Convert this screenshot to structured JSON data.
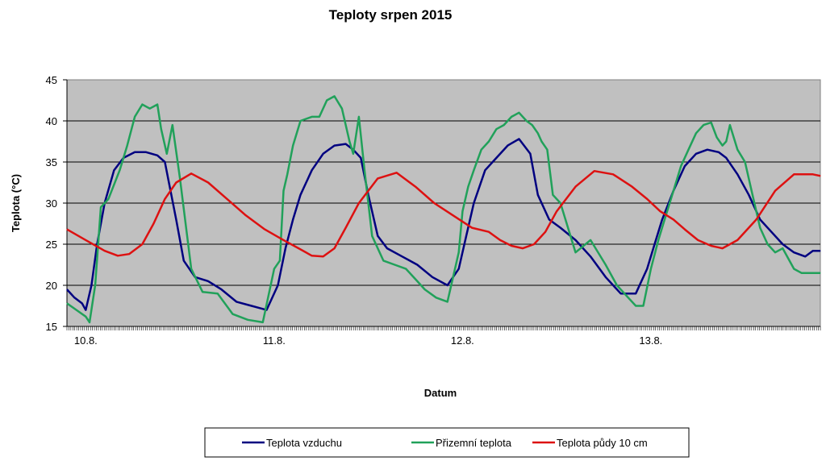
{
  "chart_data": {
    "type": "line",
    "title": "Teploty srpen 2015",
    "xlabel": "Datum",
    "ylabel": "Teplota  (°C)",
    "ylim": [
      15,
      45
    ],
    "yticks": [
      15,
      20,
      25,
      30,
      35,
      40,
      45
    ],
    "xlim": [
      0,
      4
    ],
    "x_tick_labels": [
      "10.8.",
      "11.8.",
      "12.8.",
      "13.8."
    ],
    "x_tick_positions": [
      0.1,
      1.1,
      2.1,
      3.1
    ],
    "grid": true,
    "legend_position": "bottom",
    "plot_background": "#c0c0c0",
    "series": [
      {
        "name": "Teplota vzduchu",
        "color": "#000080",
        "x": [
          0,
          0.04,
          0.08,
          0.1,
          0.13,
          0.16,
          0.2,
          0.25,
          0.3,
          0.36,
          0.42,
          0.48,
          0.52,
          0.58,
          0.62,
          0.68,
          0.75,
          0.82,
          0.9,
          0.98,
          1.06,
          1.12,
          1.16,
          1.2,
          1.24,
          1.3,
          1.36,
          1.42,
          1.48,
          1.52,
          1.56,
          1.6,
          1.65,
          1.7,
          1.78,
          1.86,
          1.94,
          2.02,
          2.08,
          2.12,
          2.16,
          2.22,
          2.28,
          2.34,
          2.4,
          2.46,
          2.5,
          2.56,
          2.62,
          2.7,
          2.78,
          2.86,
          2.94,
          3.02,
          3.08,
          3.12,
          3.16,
          3.22,
          3.28,
          3.34,
          3.4,
          3.46,
          3.5,
          3.56,
          3.62,
          3.68,
          3.74,
          3.8,
          3.86,
          3.92,
          3.96,
          4.0
        ],
        "y": [
          19.5,
          18.5,
          17.8,
          17,
          20,
          25,
          30,
          34,
          35.5,
          36.2,
          36.2,
          35.8,
          35,
          28,
          23,
          21,
          20.5,
          19.5,
          18,
          17.5,
          17,
          20,
          24.5,
          28,
          31,
          34,
          36,
          37,
          37.2,
          36.5,
          35.5,
          31,
          26,
          24.5,
          23.5,
          22.5,
          21,
          20,
          22,
          26,
          30,
          34,
          35.5,
          37,
          37.8,
          36,
          31,
          28,
          27,
          25.5,
          23.5,
          21,
          19,
          19,
          22,
          25,
          28,
          31.5,
          34.5,
          36,
          36.5,
          36.2,
          35.5,
          33.5,
          31,
          28,
          26.5,
          25,
          24,
          23.5,
          24.2,
          24.2
        ]
      },
      {
        "name": "Přizemní teplota",
        "color": "#21a15a",
        "x": [
          0,
          0.05,
          0.1,
          0.12,
          0.15,
          0.18,
          0.22,
          0.28,
          0.32,
          0.36,
          0.4,
          0.44,
          0.48,
          0.5,
          0.53,
          0.56,
          0.6,
          0.66,
          0.72,
          0.8,
          0.88,
          0.96,
          1.04,
          1.1,
          1.13,
          1.15,
          1.17,
          1.2,
          1.24,
          1.3,
          1.34,
          1.38,
          1.42,
          1.46,
          1.5,
          1.52,
          1.55,
          1.58,
          1.62,
          1.68,
          1.74,
          1.8,
          1.86,
          1.9,
          1.96,
          2.02,
          2.08,
          2.1,
          2.13,
          2.16,
          2.2,
          2.24,
          2.28,
          2.32,
          2.36,
          2.4,
          2.44,
          2.47,
          2.5,
          2.52,
          2.55,
          2.58,
          2.62,
          2.7,
          2.78,
          2.86,
          2.92,
          2.98,
          3.02,
          3.06,
          3.1,
          3.14,
          3.18,
          3.22,
          3.26,
          3.3,
          3.34,
          3.38,
          3.42,
          3.45,
          3.48,
          3.5,
          3.52,
          3.56,
          3.6,
          3.64,
          3.68,
          3.72,
          3.76,
          3.8,
          3.86,
          3.9,
          3.94,
          3.98,
          4.0
        ],
        "y": [
          17.8,
          17,
          16.2,
          15.5,
          20,
          29.5,
          30.5,
          34,
          37,
          40.5,
          42,
          41.5,
          42,
          39,
          36,
          39.5,
          33,
          22,
          19.2,
          19,
          16.5,
          15.8,
          15.5,
          22,
          23,
          31.5,
          33.5,
          37,
          40,
          40.5,
          40.5,
          42.5,
          43,
          41.5,
          37.5,
          36,
          40.5,
          34,
          26,
          23,
          22.5,
          22,
          20.5,
          19.5,
          18.5,
          18,
          24,
          29,
          32,
          34,
          36.5,
          37.5,
          39,
          39.5,
          40.5,
          41,
          40,
          39.5,
          38.5,
          37.5,
          36.5,
          31,
          30,
          24,
          25.5,
          22.5,
          20,
          18.5,
          17.5,
          17.5,
          22,
          25.5,
          28.5,
          31.5,
          34.5,
          36.5,
          38.5,
          39.5,
          39.8,
          38,
          37,
          37.5,
          39.5,
          36.5,
          35,
          31,
          27,
          25,
          24,
          24.5,
          22,
          21.5,
          21.5,
          21.5,
          21.5
        ]
      },
      {
        "name": "Teplota půdy 10 cm",
        "color": "#dd1111",
        "x": [
          0,
          0.1,
          0.2,
          0.27,
          0.33,
          0.4,
          0.46,
          0.52,
          0.58,
          0.66,
          0.75,
          0.85,
          0.95,
          1.05,
          1.15,
          1.23,
          1.3,
          1.36,
          1.42,
          1.48,
          1.55,
          1.65,
          1.75,
          1.85,
          1.95,
          2.05,
          2.15,
          2.24,
          2.3,
          2.36,
          2.42,
          2.48,
          2.54,
          2.6,
          2.7,
          2.8,
          2.9,
          3.0,
          3.08,
          3.15,
          3.22,
          3.28,
          3.35,
          3.42,
          3.48,
          3.56,
          3.66,
          3.76,
          3.86,
          3.96,
          4.0
        ],
        "y": [
          26.8,
          25.5,
          24.2,
          23.6,
          23.8,
          25,
          27.5,
          30.5,
          32.5,
          33.6,
          32.5,
          30.5,
          28.5,
          26.8,
          25.5,
          24.5,
          23.6,
          23.5,
          24.5,
          27,
          30,
          33,
          33.7,
          32,
          30,
          28.5,
          27,
          26.5,
          25.5,
          24.8,
          24.5,
          25,
          26.5,
          29,
          32,
          33.9,
          33.5,
          32,
          30.5,
          29,
          28,
          26.8,
          25.5,
          24.8,
          24.5,
          25.5,
          28,
          31.5,
          33.5,
          33.5,
          33.3
        ]
      }
    ]
  }
}
